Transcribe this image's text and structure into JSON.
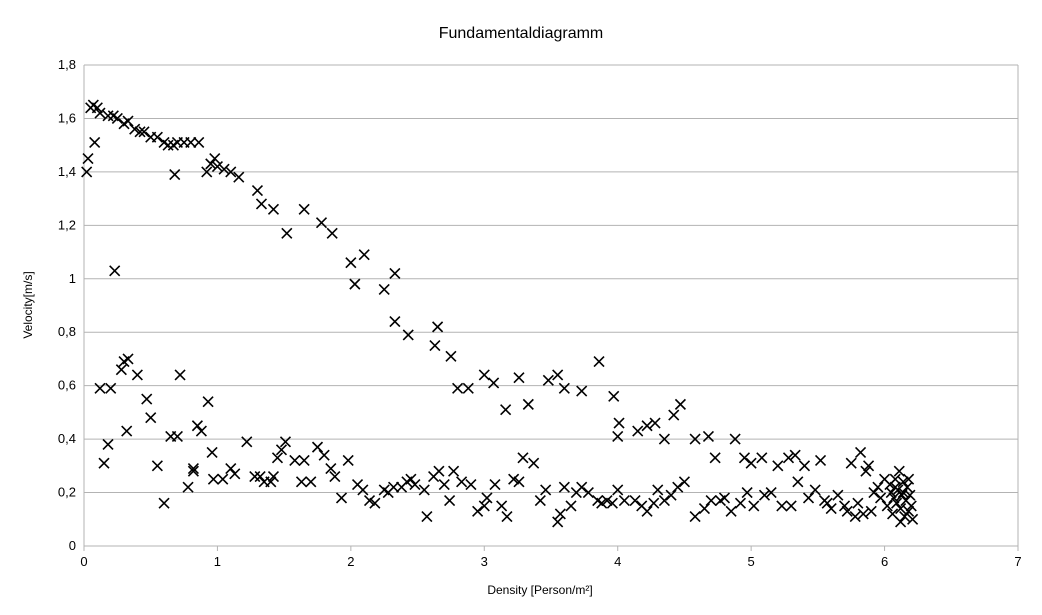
{
  "chart_data": {
    "type": "scatter",
    "title": "Fundamentaldiagramm",
    "xlabel": "Density [Person/m²]",
    "ylabel": "Velocity[m/s]",
    "xlim": [
      0,
      7
    ],
    "ylim": [
      0,
      1.8
    ],
    "x_ticks": [
      "0",
      "1",
      "2",
      "3",
      "4",
      "5",
      "6",
      "7"
    ],
    "y_ticks": [
      "0",
      "0,2",
      "0,4",
      "0,6",
      "0,8",
      "1",
      "1,2",
      "1,4",
      "1,6",
      "1,8"
    ],
    "grid": true,
    "marker": "x",
    "series": [
      {
        "points": [
          [
            0.02,
            1.4
          ],
          [
            0.03,
            1.45
          ],
          [
            0.05,
            1.64
          ],
          [
            0.07,
            1.65
          ],
          [
            0.08,
            1.51
          ],
          [
            0.1,
            1.64
          ],
          [
            0.12,
            1.62
          ],
          [
            0.18,
            1.61
          ],
          [
            0.22,
            1.61
          ],
          [
            0.25,
            1.6
          ],
          [
            0.3,
            1.58
          ],
          [
            0.33,
            1.59
          ],
          [
            0.38,
            1.56
          ],
          [
            0.42,
            1.55
          ],
          [
            0.45,
            1.55
          ],
          [
            0.5,
            1.53
          ],
          [
            0.55,
            1.53
          ],
          [
            0.6,
            1.51
          ],
          [
            0.63,
            1.5
          ],
          [
            0.67,
            1.5
          ],
          [
            0.7,
            1.51
          ],
          [
            0.75,
            1.51
          ],
          [
            0.8,
            1.51
          ],
          [
            0.86,
            1.51
          ],
          [
            0.68,
            1.39
          ],
          [
            0.92,
            1.4
          ],
          [
            0.95,
            1.43
          ],
          [
            0.98,
            1.45
          ],
          [
            1.0,
            1.42
          ],
          [
            1.05,
            1.41
          ],
          [
            1.1,
            1.4
          ],
          [
            1.16,
            1.38
          ],
          [
            1.3,
            1.33
          ],
          [
            1.33,
            1.28
          ],
          [
            1.42,
            1.26
          ],
          [
            1.52,
            1.17
          ],
          [
            1.65,
            1.26
          ],
          [
            1.78,
            1.21
          ],
          [
            1.86,
            1.17
          ],
          [
            2.0,
            1.06
          ],
          [
            2.03,
            0.98
          ],
          [
            2.1,
            1.09
          ],
          [
            2.25,
            0.96
          ],
          [
            2.33,
            1.02
          ],
          [
            2.33,
            0.84
          ],
          [
            2.43,
            0.79
          ],
          [
            2.63,
            0.75
          ],
          [
            2.65,
            0.82
          ],
          [
            2.75,
            0.71
          ],
          [
            2.8,
            0.59
          ],
          [
            2.88,
            0.59
          ],
          [
            3.0,
            0.64
          ],
          [
            3.07,
            0.61
          ],
          [
            3.16,
            0.51
          ],
          [
            3.26,
            0.63
          ],
          [
            3.33,
            0.53
          ],
          [
            3.48,
            0.62
          ],
          [
            3.55,
            0.64
          ],
          [
            3.6,
            0.59
          ],
          [
            3.73,
            0.58
          ],
          [
            3.86,
            0.69
          ],
          [
            3.97,
            0.56
          ],
          [
            4.01,
            0.46
          ],
          [
            4.0,
            0.41
          ],
          [
            4.15,
            0.43
          ],
          [
            4.22,
            0.45
          ],
          [
            4.28,
            0.46
          ],
          [
            4.35,
            0.4
          ],
          [
            4.42,
            0.49
          ],
          [
            4.47,
            0.53
          ],
          [
            0.12,
            0.59
          ],
          [
            0.2,
            0.59
          ],
          [
            0.23,
            1.03
          ],
          [
            0.28,
            0.66
          ],
          [
            0.3,
            0.69
          ],
          [
            0.33,
            0.7
          ],
          [
            0.4,
            0.64
          ],
          [
            0.47,
            0.55
          ],
          [
            0.5,
            0.48
          ],
          [
            0.55,
            0.3
          ],
          [
            0.15,
            0.31
          ],
          [
            0.18,
            0.38
          ],
          [
            0.32,
            0.43
          ],
          [
            0.6,
            0.16
          ],
          [
            0.65,
            0.41
          ],
          [
            0.7,
            0.41
          ],
          [
            0.72,
            0.64
          ],
          [
            0.78,
            0.22
          ],
          [
            0.82,
            0.29
          ],
          [
            0.82,
            0.28
          ],
          [
            0.85,
            0.45
          ],
          [
            0.88,
            0.43
          ],
          [
            0.93,
            0.54
          ],
          [
            0.96,
            0.35
          ],
          [
            0.97,
            0.25
          ],
          [
            1.04,
            0.25
          ],
          [
            1.1,
            0.29
          ],
          [
            1.13,
            0.27
          ],
          [
            1.22,
            0.39
          ],
          [
            1.28,
            0.26
          ],
          [
            1.32,
            0.26
          ],
          [
            1.35,
            0.24
          ],
          [
            1.4,
            0.24
          ],
          [
            1.42,
            0.26
          ],
          [
            1.45,
            0.33
          ],
          [
            1.48,
            0.36
          ],
          [
            1.51,
            0.39
          ],
          [
            1.58,
            0.32
          ],
          [
            1.63,
            0.24
          ],
          [
            1.65,
            0.32
          ],
          [
            1.7,
            0.24
          ],
          [
            1.75,
            0.37
          ],
          [
            1.8,
            0.34
          ],
          [
            1.85,
            0.29
          ],
          [
            1.88,
            0.26
          ],
          [
            1.93,
            0.18
          ],
          [
            1.98,
            0.32
          ],
          [
            2.05,
            0.23
          ],
          [
            2.09,
            0.21
          ],
          [
            2.14,
            0.17
          ],
          [
            2.18,
            0.16
          ],
          [
            2.25,
            0.21
          ],
          [
            2.28,
            0.2
          ],
          [
            2.32,
            0.22
          ],
          [
            2.38,
            0.22
          ],
          [
            2.42,
            0.24
          ],
          [
            2.45,
            0.25
          ],
          [
            2.48,
            0.23
          ],
          [
            2.55,
            0.21
          ],
          [
            2.57,
            0.11
          ],
          [
            2.62,
            0.26
          ],
          [
            2.66,
            0.28
          ],
          [
            2.7,
            0.23
          ],
          [
            2.74,
            0.17
          ],
          [
            2.77,
            0.28
          ],
          [
            2.83,
            0.24
          ],
          [
            2.9,
            0.23
          ],
          [
            2.95,
            0.13
          ],
          [
            3.0,
            0.15
          ],
          [
            3.02,
            0.18
          ],
          [
            3.08,
            0.23
          ],
          [
            3.13,
            0.15
          ],
          [
            3.17,
            0.11
          ],
          [
            3.22,
            0.25
          ],
          [
            3.26,
            0.24
          ],
          [
            3.29,
            0.33
          ],
          [
            3.37,
            0.31
          ],
          [
            3.42,
            0.17
          ],
          [
            3.46,
            0.21
          ],
          [
            3.55,
            0.09
          ],
          [
            3.57,
            0.12
          ],
          [
            3.6,
            0.22
          ],
          [
            3.65,
            0.15
          ],
          [
            3.69,
            0.2
          ],
          [
            3.73,
            0.22
          ],
          [
            3.78,
            0.2
          ],
          [
            3.85,
            0.17
          ],
          [
            3.88,
            0.16
          ],
          [
            3.92,
            0.17
          ],
          [
            3.96,
            0.16
          ],
          [
            4.0,
            0.21
          ],
          [
            4.05,
            0.17
          ],
          [
            4.13,
            0.17
          ],
          [
            4.18,
            0.15
          ],
          [
            4.22,
            0.13
          ],
          [
            4.27,
            0.16
          ],
          [
            4.3,
            0.21
          ],
          [
            4.35,
            0.17
          ],
          [
            4.4,
            0.19
          ],
          [
            4.45,
            0.22
          ],
          [
            4.5,
            0.24
          ],
          [
            4.58,
            0.4
          ],
          [
            4.58,
            0.11
          ],
          [
            4.65,
            0.14
          ],
          [
            4.68,
            0.41
          ],
          [
            4.7,
            0.17
          ],
          [
            4.73,
            0.33
          ],
          [
            4.77,
            0.17
          ],
          [
            4.8,
            0.18
          ],
          [
            4.85,
            0.13
          ],
          [
            4.88,
            0.4
          ],
          [
            4.92,
            0.16
          ],
          [
            4.95,
            0.33
          ],
          [
            4.97,
            0.2
          ],
          [
            5.0,
            0.31
          ],
          [
            5.02,
            0.15
          ],
          [
            5.08,
            0.33
          ],
          [
            5.1,
            0.19
          ],
          [
            5.15,
            0.2
          ],
          [
            5.2,
            0.3
          ],
          [
            5.23,
            0.15
          ],
          [
            5.28,
            0.33
          ],
          [
            5.3,
            0.15
          ],
          [
            5.33,
            0.34
          ],
          [
            5.35,
            0.24
          ],
          [
            5.4,
            0.3
          ],
          [
            5.43,
            0.18
          ],
          [
            5.48,
            0.21
          ],
          [
            5.52,
            0.32
          ],
          [
            5.55,
            0.17
          ],
          [
            5.57,
            0.16
          ],
          [
            5.6,
            0.14
          ],
          [
            5.65,
            0.19
          ],
          [
            5.7,
            0.15
          ],
          [
            5.72,
            0.13
          ],
          [
            5.75,
            0.31
          ],
          [
            5.78,
            0.11
          ],
          [
            5.8,
            0.16
          ],
          [
            5.82,
            0.35
          ],
          [
            5.84,
            0.12
          ],
          [
            5.86,
            0.28
          ],
          [
            5.88,
            0.3
          ],
          [
            5.9,
            0.13
          ],
          [
            5.92,
            0.2
          ],
          [
            5.95,
            0.22
          ],
          [
            5.97,
            0.18
          ],
          [
            6.0,
            0.25
          ],
          [
            6.02,
            0.15
          ],
          [
            6.04,
            0.23
          ],
          [
            6.05,
            0.2
          ],
          [
            6.06,
            0.12
          ],
          [
            6.07,
            0.18
          ],
          [
            6.08,
            0.25
          ],
          [
            6.09,
            0.16
          ],
          [
            6.1,
            0.21
          ],
          [
            6.11,
            0.28
          ],
          [
            6.12,
            0.14
          ],
          [
            6.13,
            0.19
          ],
          [
            6.14,
            0.24
          ],
          [
            6.15,
            0.11
          ],
          [
            6.16,
            0.17
          ],
          [
            6.17,
            0.22
          ],
          [
            6.18,
            0.13
          ],
          [
            6.19,
            0.19
          ],
          [
            6.2,
            0.15
          ],
          [
            6.21,
            0.1
          ],
          [
            6.12,
            0.09
          ],
          [
            6.08,
            0.22
          ],
          [
            6.14,
            0.2
          ],
          [
            6.18,
            0.25
          ]
        ]
      }
    ]
  }
}
